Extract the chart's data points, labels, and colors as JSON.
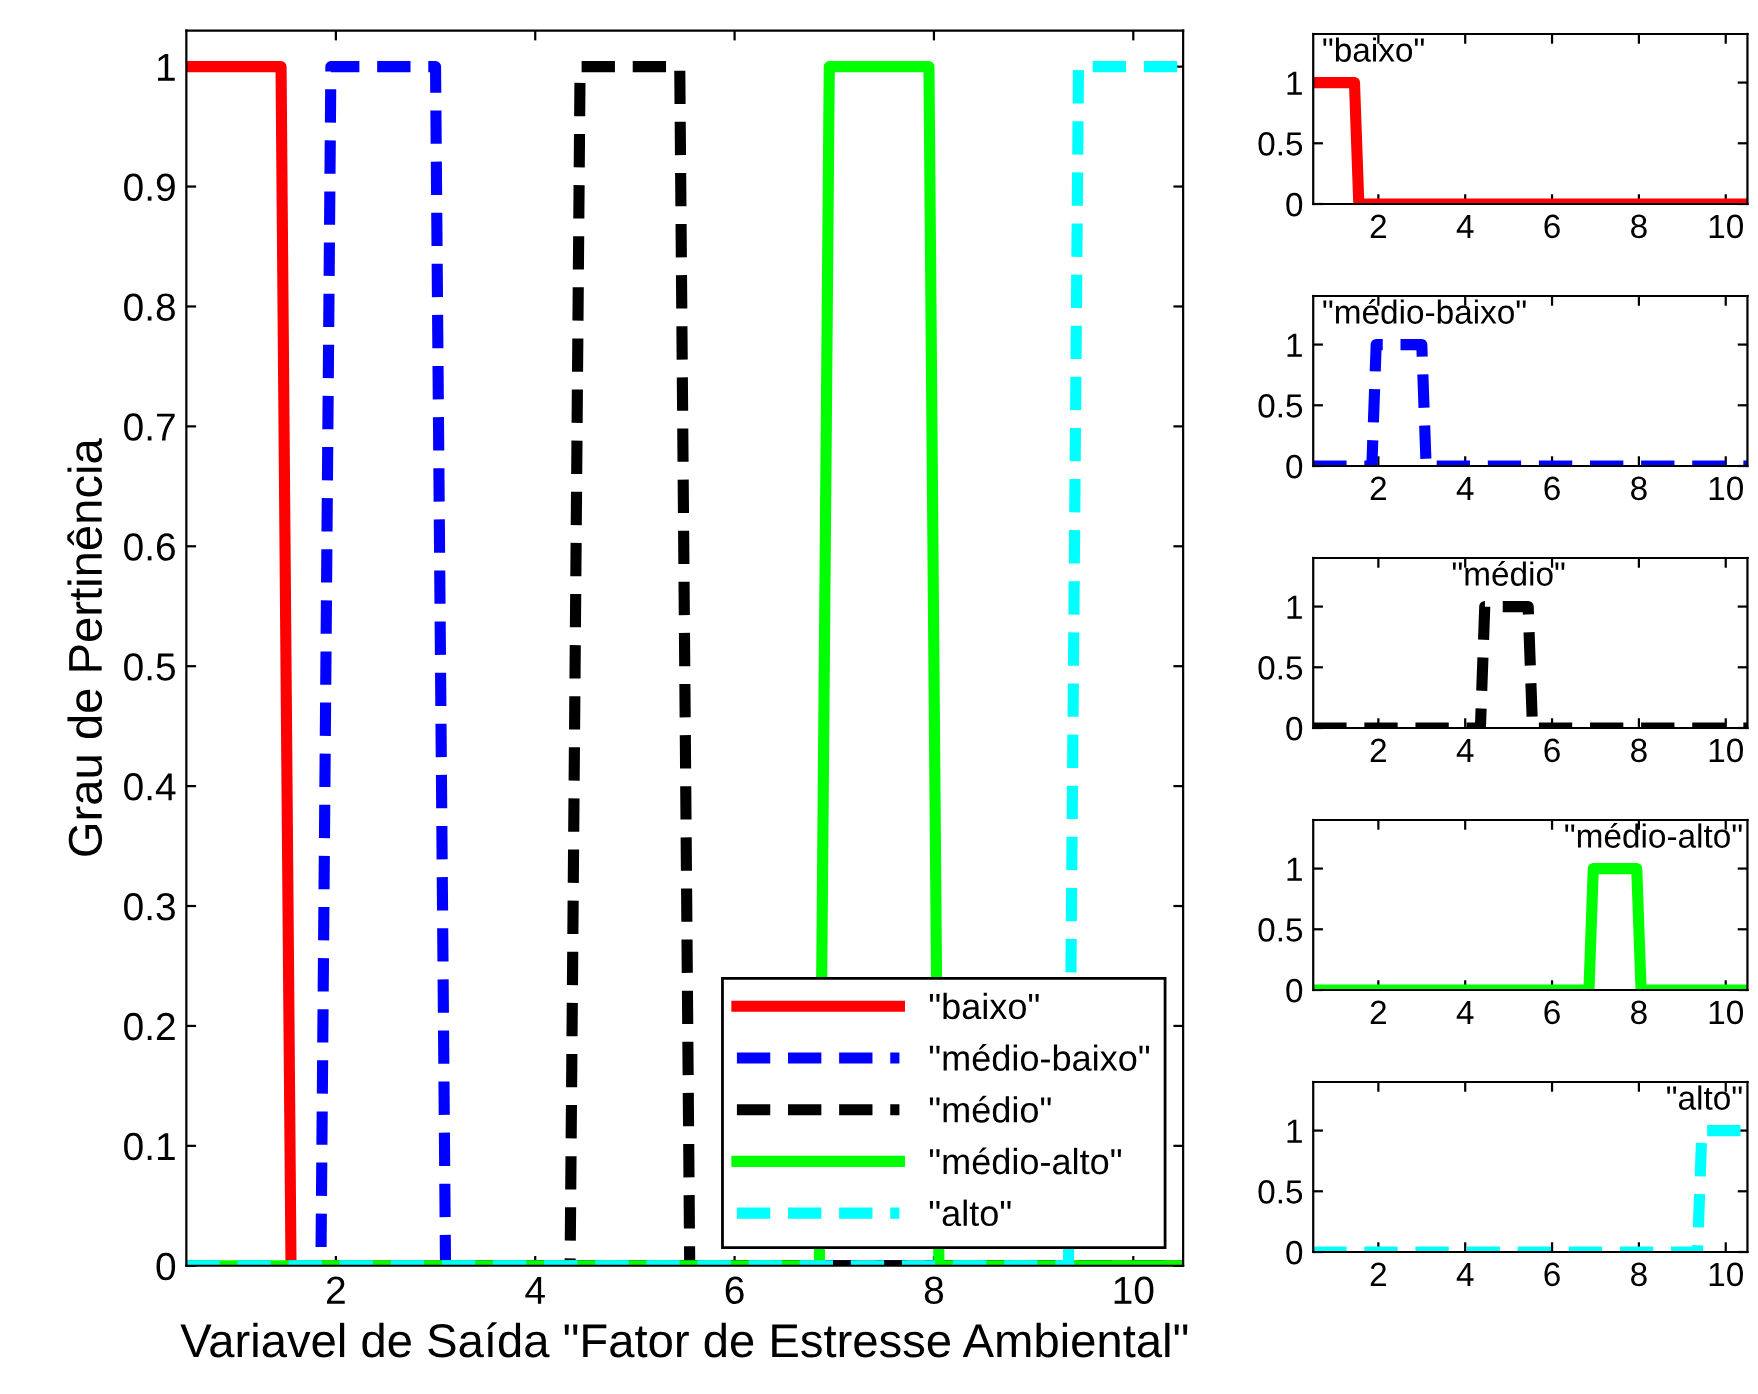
{
  "chart_data": [
    {
      "type": "line",
      "xlabel": "Variavel de Saída \"Fator de Estresse Ambiental\"",
      "ylabel": "Grau de Pertinência",
      "xlim": [
        0.5,
        10.5
      ],
      "ylim": [
        0,
        1.03
      ],
      "xticks": [
        2,
        4,
        6,
        8,
        10
      ],
      "yticks": [
        0,
        0.1,
        0.2,
        0.3,
        0.4,
        0.5,
        0.6,
        0.7,
        0.8,
        0.9,
        1
      ],
      "legend": "bottom right",
      "grid": false,
      "series": [
        {
          "name": "\"baixo\"",
          "color": "#ff0000",
          "line_style": "solid",
          "x": [
            0.5,
            1.45,
            1.55,
            10.5
          ],
          "values": [
            1,
            1,
            0,
            0
          ]
        },
        {
          "name": "\"médio-baixo\"",
          "color": "#0000ff",
          "line_style": "dashed",
          "x": [
            0.5,
            1.85,
            1.95,
            3.0,
            3.1,
            10.5
          ],
          "values": [
            0,
            0,
            1,
            1,
            0,
            0
          ]
        },
        {
          "name": "\"médio\"",
          "color": "#000000",
          "line_style": "dashed",
          "x": [
            0.5,
            4.35,
            4.45,
            5.45,
            5.55,
            10.5
          ],
          "values": [
            0,
            0,
            1,
            1,
            0,
            0
          ]
        },
        {
          "name": "\"médio-alto\"",
          "color": "#00ff00",
          "line_style": "solid",
          "x": [
            0.5,
            6.85,
            6.95,
            7.95,
            8.05,
            10.5
          ],
          "values": [
            0,
            0,
            1,
            1,
            0,
            0
          ]
        },
        {
          "name": "\"alto\"",
          "color": "#00ffff",
          "line_style": "dashed",
          "x": [
            0.5,
            9.35,
            9.45,
            10.5
          ],
          "values": [
            0,
            0,
            1,
            1
          ]
        }
      ]
    },
    {
      "type": "line",
      "title": "\"baixo\"",
      "xlim": [
        0.5,
        10.5
      ],
      "ylim": [
        0,
        1.4
      ],
      "xticks": [
        2,
        4,
        6,
        8,
        10
      ],
      "yticks": [
        0,
        0.5,
        1
      ],
      "grid": false,
      "series": [
        {
          "color": "#ff0000",
          "line_style": "solid",
          "x": [
            0.5,
            1.45,
            1.55,
            10.5
          ],
          "values": [
            1,
            1,
            0,
            0
          ]
        }
      ]
    },
    {
      "type": "line",
      "title": "\"médio-baixo\"",
      "xlim": [
        0.5,
        10.5
      ],
      "ylim": [
        0,
        1.4
      ],
      "xticks": [
        2,
        4,
        6,
        8,
        10
      ],
      "yticks": [
        0,
        0.5,
        1
      ],
      "grid": false,
      "series": [
        {
          "color": "#0000ff",
          "line_style": "dashed",
          "x": [
            0.5,
            1.85,
            1.95,
            3.0,
            3.1,
            10.5
          ],
          "values": [
            0,
            0,
            1,
            1,
            0,
            0
          ]
        }
      ]
    },
    {
      "type": "line",
      "title": "\"médio\"",
      "xlim": [
        0.5,
        10.5
      ],
      "ylim": [
        0,
        1.4
      ],
      "xticks": [
        2,
        4,
        6,
        8,
        10
      ],
      "yticks": [
        0,
        0.5,
        1
      ],
      "grid": false,
      "series": [
        {
          "color": "#000000",
          "line_style": "dashed",
          "x": [
            0.5,
            4.35,
            4.45,
            5.45,
            5.55,
            10.5
          ],
          "values": [
            0,
            0,
            1,
            1,
            0,
            0
          ]
        }
      ]
    },
    {
      "type": "line",
      "title": "\"médio-alto\"",
      "xlim": [
        0.5,
        10.5
      ],
      "ylim": [
        0,
        1.4
      ],
      "xticks": [
        2,
        4,
        6,
        8,
        10
      ],
      "yticks": [
        0,
        0.5,
        1
      ],
      "grid": false,
      "series": [
        {
          "color": "#00ff00",
          "line_style": "solid",
          "x": [
            0.5,
            6.85,
            6.95,
            7.95,
            8.05,
            10.5
          ],
          "values": [
            0,
            0,
            1,
            1,
            0,
            0
          ]
        }
      ]
    },
    {
      "type": "line",
      "title": "\"alto\"",
      "xlim": [
        0.5,
        10.5
      ],
      "ylim": [
        0,
        1.4
      ],
      "xticks": [
        2,
        4,
        6,
        8,
        10
      ],
      "yticks": [
        0,
        0.5,
        1
      ],
      "grid": false,
      "series": [
        {
          "color": "#00ffff",
          "line_style": "dashed",
          "x": [
            0.5,
            9.35,
            9.45,
            10.5
          ],
          "values": [
            0,
            0,
            1,
            1
          ]
        }
      ]
    }
  ]
}
